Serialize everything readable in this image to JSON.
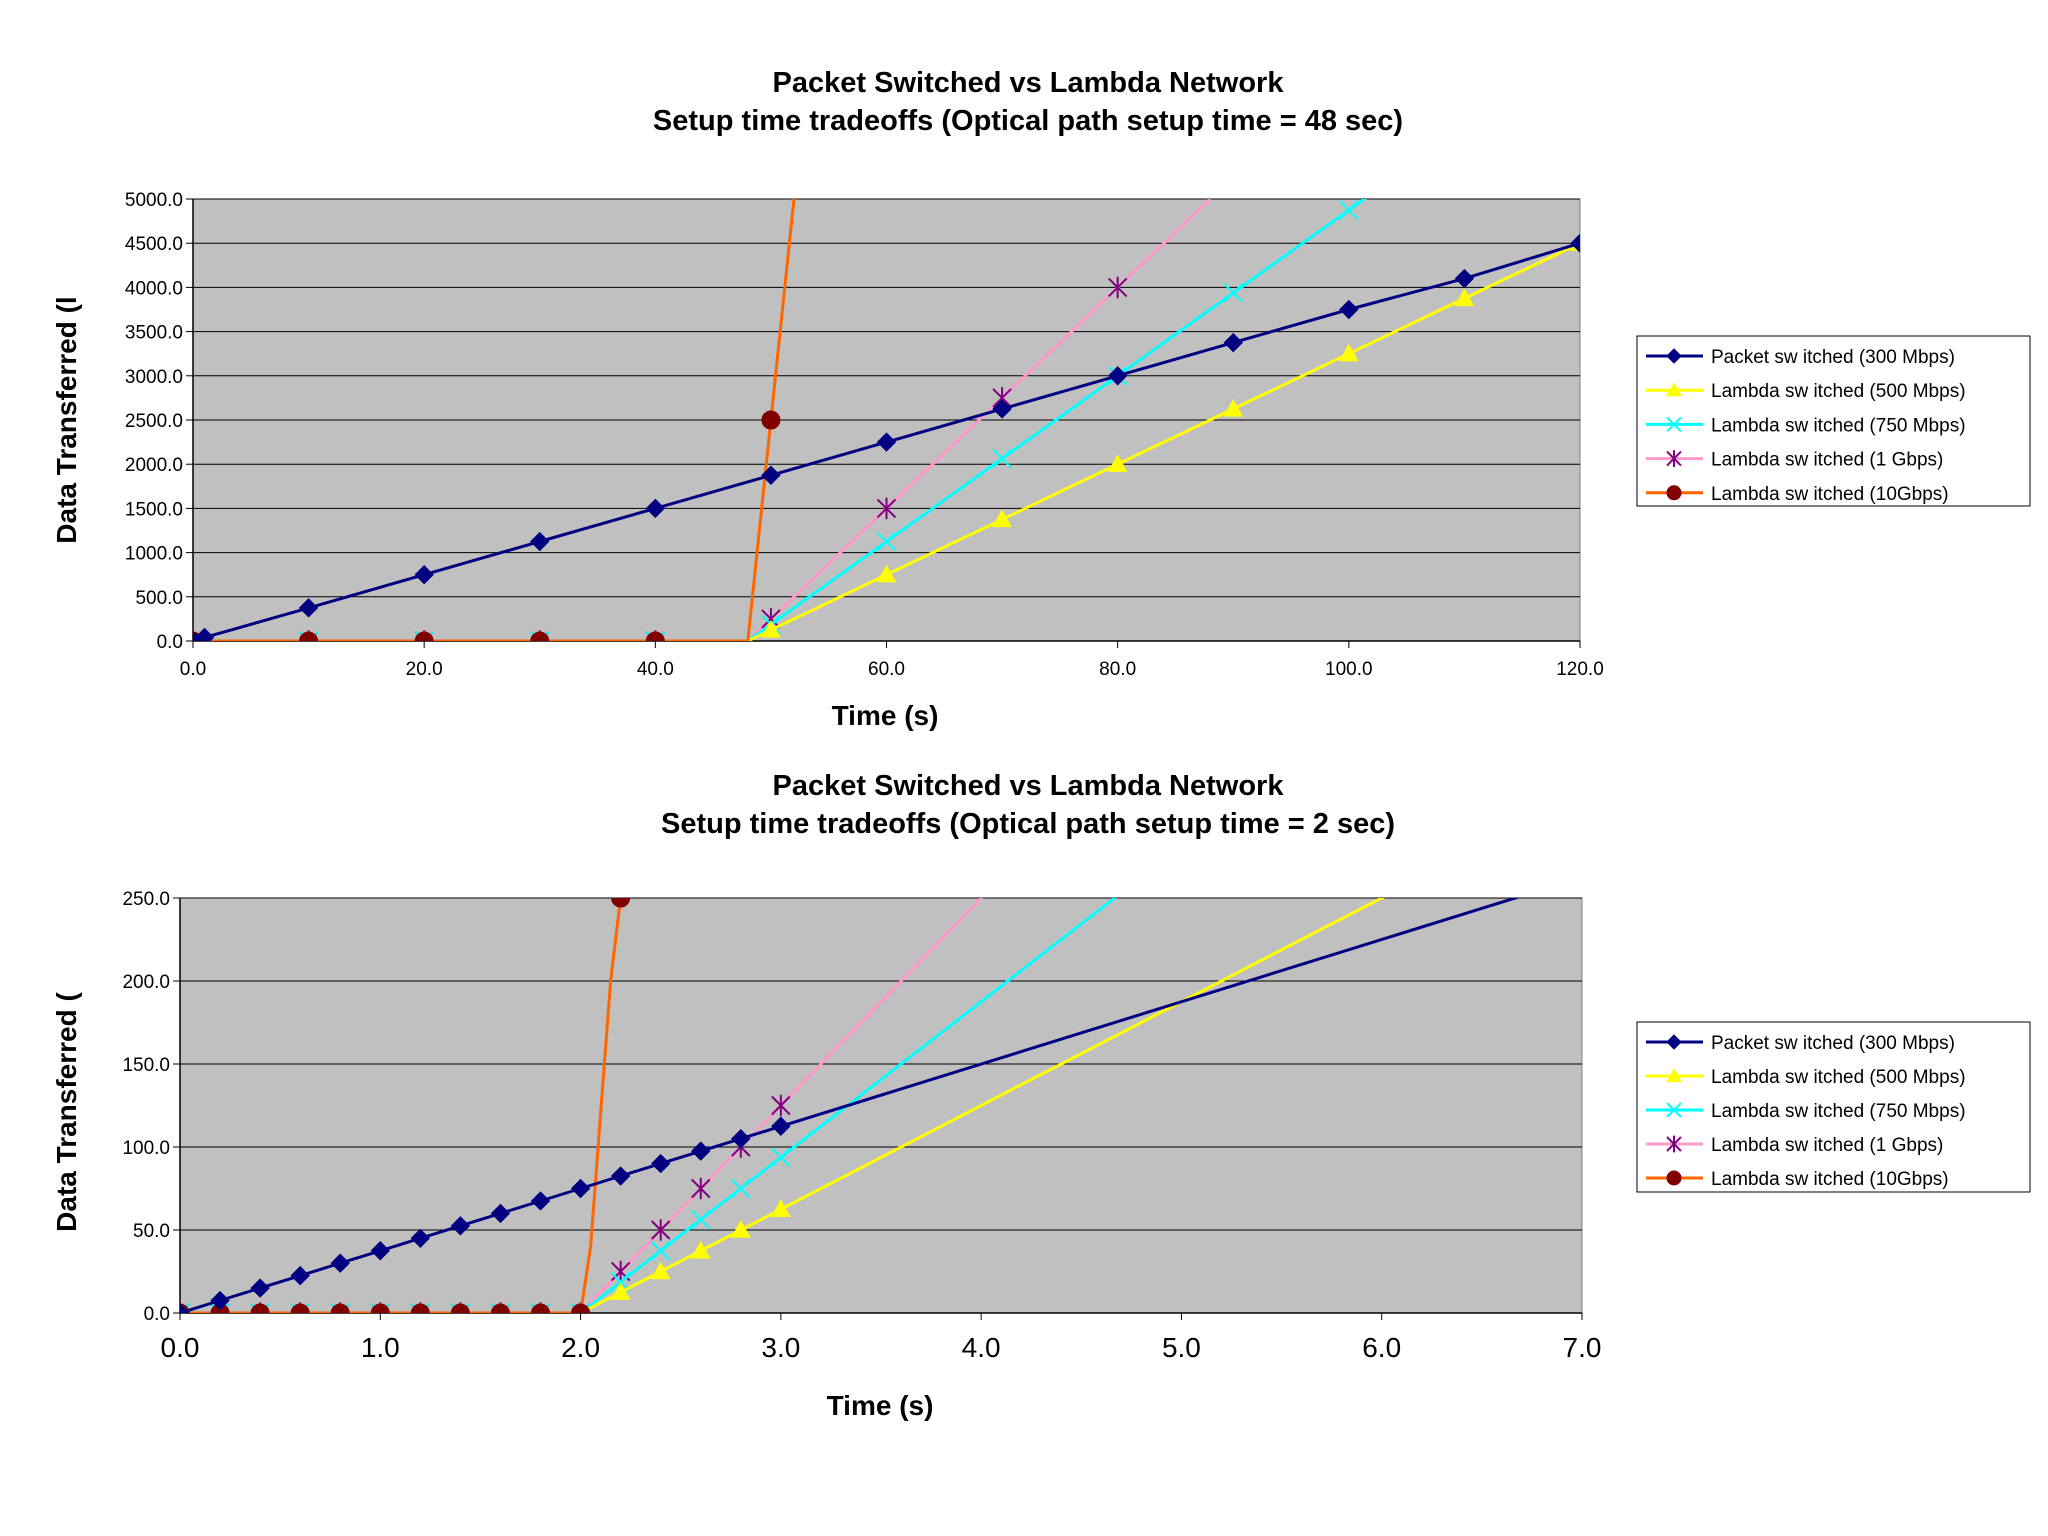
{
  "chart_data": [
    {
      "type": "line",
      "title": "Packet Switched vs Lambda Network",
      "subtitle": "Setup time tradeoffs (Optical path setup time = 48 sec)",
      "xlabel": "Time (s)",
      "ylabel": "Data Transferred (l",
      "xlim": [
        0,
        120
      ],
      "ylim": [
        0,
        5000
      ],
      "x_ticks": [
        "0.0",
        "20.0",
        "40.0",
        "60.0",
        "80.0",
        "100.0",
        "120.0"
      ],
      "y_ticks": [
        "0.0",
        "500.0",
        "1000.0",
        "1500.0",
        "2000.0",
        "2500.0",
        "3000.0",
        "3500.0",
        "4000.0",
        "4500.0",
        "5000.0"
      ],
      "grid": true,
      "legend_position": "right",
      "series": [
        {
          "name": "Packet sw itched (300 Mbps)",
          "color": "#000080",
          "marker": "diamond",
          "x": [
            0,
            1,
            10,
            20,
            30,
            40,
            50,
            60,
            70,
            80,
            90,
            100,
            110,
            120
          ],
          "y": [
            0,
            40,
            375,
            750,
            1125,
            1500,
            1875,
            2250,
            2625,
            3000,
            3375,
            3750,
            4100,
            4500
          ],
          "markers_x": [
            0,
            1,
            10,
            20,
            30,
            40,
            50,
            60,
            70,
            80,
            90,
            100,
            110,
            120
          ]
        },
        {
          "name": "Lambda sw itched (500 Mbps)",
          "color": "#FFFF00",
          "marker": "triangle",
          "x": [
            0,
            10,
            20,
            30,
            40,
            48,
            50,
            60,
            70,
            80,
            90,
            100,
            110,
            120
          ],
          "y": [
            0,
            0,
            0,
            0,
            0,
            0,
            125,
            750,
            1375,
            2000,
            2625,
            3250,
            3875,
            4500
          ],
          "markers_x": [
            0,
            10,
            20,
            30,
            40,
            50,
            60,
            70,
            80,
            90,
            100,
            110,
            120
          ]
        },
        {
          "name": "Lambda sw itched (750 Mbps)",
          "color": "#00FFFF",
          "marker": "x",
          "x": [
            0,
            10,
            20,
            30,
            40,
            48,
            50,
            60,
            70,
            80,
            90,
            100,
            102
          ],
          "y": [
            0,
            0,
            0,
            0,
            0,
            0,
            187,
            1125,
            2063,
            3000,
            3938,
            4875,
            5063
          ],
          "markers_x": [
            0,
            10,
            20,
            30,
            40,
            50,
            60,
            70,
            80,
            90,
            100
          ]
        },
        {
          "name": "Lambda sw itched (1 Gbps)",
          "color": "#FF99CC",
          "marker": "star",
          "marker_color": "#800080",
          "x": [
            0,
            10,
            20,
            30,
            40,
            48,
            50,
            60,
            70,
            80,
            88
          ],
          "y": [
            0,
            0,
            0,
            0,
            0,
            0,
            250,
            1500,
            2750,
            4000,
            5000
          ],
          "markers_x": [
            0,
            10,
            20,
            30,
            40,
            50,
            60,
            70,
            80
          ]
        },
        {
          "name": "Lambda sw itched (10Gbps)",
          "color": "#FF6600",
          "marker": "circle",
          "marker_color": "#800000",
          "x": [
            0,
            10,
            20,
            30,
            40,
            48,
            50,
            52
          ],
          "y": [
            0,
            0,
            0,
            0,
            0,
            0,
            2500,
            5000
          ],
          "markers_x": [
            0,
            10,
            20,
            30,
            40,
            50
          ]
        }
      ]
    },
    {
      "type": "line",
      "title": "Packet Switched vs Lambda Network",
      "subtitle": "Setup time tradeoffs (Optical path setup time = 2 sec)",
      "xlabel": "Time (s)",
      "ylabel": "Data Transferred (",
      "xlim": [
        0,
        7
      ],
      "ylim": [
        0,
        250
      ],
      "x_ticks": [
        "0.0",
        "1.0",
        "2.0",
        "3.0",
        "4.0",
        "5.0",
        "6.0",
        "7.0"
      ],
      "y_ticks": [
        "0.0",
        "50.0",
        "100.0",
        "150.0",
        "200.0",
        "250.0"
      ],
      "grid": true,
      "legend_position": "right",
      "series": [
        {
          "name": "Packet sw itched (300 Mbps)",
          "color": "#000080",
          "marker": "diamond",
          "x": [
            0,
            0.2,
            0.4,
            0.6,
            0.8,
            1.0,
            1.2,
            1.4,
            1.6,
            1.8,
            2.0,
            2.2,
            2.4,
            2.6,
            2.8,
            3.0,
            6.8
          ],
          "y": [
            0,
            7.5,
            15,
            22.5,
            30,
            37.5,
            45,
            52.5,
            60,
            67.5,
            75,
            82.5,
            90,
            97.5,
            105,
            112.5,
            255
          ],
          "markers_x": [
            0,
            0.2,
            0.4,
            0.6,
            0.8,
            1.0,
            1.2,
            1.4,
            1.6,
            1.8,
            2.0,
            2.2,
            2.4,
            2.6,
            2.8,
            3.0
          ]
        },
        {
          "name": "Lambda sw itched (500 Mbps)",
          "color": "#FFFF00",
          "marker": "triangle",
          "x": [
            0,
            0.2,
            0.4,
            0.6,
            0.8,
            1.0,
            1.2,
            1.4,
            1.6,
            1.8,
            2.0,
            2.2,
            2.4,
            2.6,
            2.8,
            3.0,
            6.08
          ],
          "y": [
            0,
            0,
            0,
            0,
            0,
            0,
            0,
            0,
            0,
            0,
            0,
            12.5,
            25,
            37.5,
            50,
            62.5,
            255
          ],
          "markers_x": [
            0,
            0.2,
            0.4,
            0.6,
            0.8,
            1.0,
            1.2,
            1.4,
            1.6,
            1.8,
            2.0,
            2.2,
            2.4,
            2.6,
            2.8,
            3.0
          ]
        },
        {
          "name": "Lambda sw itched (750 Mbps)",
          "color": "#00FFFF",
          "marker": "x",
          "x": [
            0,
            0.2,
            0.4,
            0.6,
            0.8,
            1.0,
            1.2,
            1.4,
            1.6,
            1.8,
            2.0,
            2.2,
            2.4,
            2.6,
            2.8,
            3.0,
            4.72
          ],
          "y": [
            0,
            0,
            0,
            0,
            0,
            0,
            0,
            0,
            0,
            0,
            0,
            18.75,
            37.5,
            56.25,
            75,
            93.75,
            255
          ],
          "markers_x": [
            0,
            0.2,
            0.4,
            0.6,
            0.8,
            1.0,
            1.2,
            1.4,
            1.6,
            1.8,
            2.0,
            2.2,
            2.4,
            2.6,
            2.8,
            3.0
          ]
        },
        {
          "name": "Lambda sw itched (1 Gbps)",
          "color": "#FF99CC",
          "marker": "star",
          "marker_color": "#800080",
          "x": [
            0,
            0.2,
            0.4,
            0.6,
            0.8,
            1.0,
            1.2,
            1.4,
            1.6,
            1.8,
            2.0,
            2.2,
            2.4,
            2.6,
            2.8,
            3.0,
            4.04
          ],
          "y": [
            0,
            0,
            0,
            0,
            0,
            0,
            0,
            0,
            0,
            0,
            0,
            25,
            50,
            75,
            100,
            125,
            255
          ],
          "markers_x": [
            0,
            0.2,
            0.4,
            0.6,
            0.8,
            1.0,
            1.2,
            1.4,
            1.6,
            1.8,
            2.0,
            2.2,
            2.4,
            2.6,
            2.8,
            3.0
          ]
        },
        {
          "name": "Lambda sw itched (10Gbps)",
          "color": "#FF6600",
          "marker": "circle",
          "marker_color": "#800000",
          "x": [
            0,
            0.2,
            0.4,
            0.6,
            0.8,
            1.0,
            1.2,
            1.4,
            1.6,
            1.8,
            2.0,
            2.05,
            2.1,
            2.15,
            2.2
          ],
          "y": [
            0,
            0,
            0,
            0,
            0,
            0,
            0,
            0,
            0,
            0,
            0,
            40,
            120,
            200,
            250
          ],
          "markers_x": [
            0,
            0.2,
            0.4,
            0.6,
            0.8,
            1.0,
            1.2,
            1.4,
            1.6,
            1.8,
            2.0,
            2.2
          ]
        }
      ]
    }
  ]
}
